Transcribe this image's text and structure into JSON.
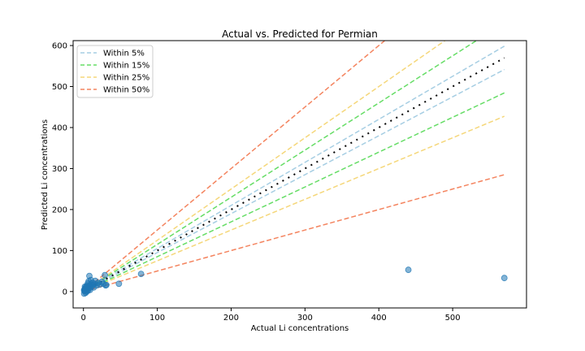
{
  "chart_data": {
    "type": "scatter",
    "title": "Actual vs. Predicted for Permian",
    "xlabel": "Actual Li concentrations",
    "ylabel": "Predicted Li concentrations",
    "xlim": [
      -14,
      600
    ],
    "ylim": [
      -40,
      612
    ],
    "xticks": [
      0,
      100,
      200,
      300,
      400,
      500
    ],
    "yticks": [
      0,
      100,
      200,
      300,
      400,
      500,
      600
    ],
    "legend_position": "upper-left",
    "bands": [
      {
        "name": "Within 5%",
        "fraction": 0.05,
        "color": "#a6cee3"
      },
      {
        "name": "Within 15%",
        "fraction": 0.15,
        "color": "#66dd66"
      },
      {
        "name": "Within 25%",
        "fraction": 0.25,
        "color": "#f5d77a"
      },
      {
        "name": "Within 50%",
        "fraction": 0.5,
        "color": "#f4845f"
      }
    ],
    "identity_line": {
      "x": [
        0,
        570
      ],
      "color": "#000000"
    },
    "point_color": "#1f77b4",
    "points": [
      {
        "x": 1,
        "y": 2
      },
      {
        "x": 1,
        "y": 4
      },
      {
        "x": 2,
        "y": 7
      },
      {
        "x": 2,
        "y": 1
      },
      {
        "x": 3,
        "y": 10
      },
      {
        "x": 3,
        "y": 5
      },
      {
        "x": 3,
        "y": -3
      },
      {
        "x": 4,
        "y": 12
      },
      {
        "x": 4,
        "y": 8
      },
      {
        "x": 5,
        "y": 3
      },
      {
        "x": 5,
        "y": 15
      },
      {
        "x": 6,
        "y": 20
      },
      {
        "x": 6,
        "y": 6
      },
      {
        "x": 7,
        "y": 11
      },
      {
        "x": 7,
        "y": 25
      },
      {
        "x": 8,
        "y": 14
      },
      {
        "x": 8,
        "y": 38
      },
      {
        "x": 9,
        "y": 9
      },
      {
        "x": 10,
        "y": 18
      },
      {
        "x": 10,
        "y": 28
      },
      {
        "x": 11,
        "y": 13
      },
      {
        "x": 12,
        "y": 22
      },
      {
        "x": 13,
        "y": 16
      },
      {
        "x": 14,
        "y": 10
      },
      {
        "x": 15,
        "y": 19
      },
      {
        "x": 16,
        "y": 26
      },
      {
        "x": 18,
        "y": 15
      },
      {
        "x": 20,
        "y": 21
      },
      {
        "x": 22,
        "y": 17
      },
      {
        "x": 25,
        "y": 24
      },
      {
        "x": 27,
        "y": 19
      },
      {
        "x": 29,
        "y": 40
      },
      {
        "x": 30,
        "y": 15
      },
      {
        "x": 31,
        "y": 16
      },
      {
        "x": 48,
        "y": 19
      },
      {
        "x": 78,
        "y": 43
      },
      {
        "x": 440,
        "y": 53
      },
      {
        "x": 570,
        "y": 33
      },
      {
        "x": 1,
        "y": -5
      },
      {
        "x": 2,
        "y": 3
      },
      {
        "x": 4,
        "y": 0
      },
      {
        "x": 6,
        "y": 2
      },
      {
        "x": 3,
        "y": 6
      },
      {
        "x": 5,
        "y": 9
      },
      {
        "x": 2,
        "y": 12
      },
      {
        "x": 9,
        "y": 4
      }
    ]
  }
}
